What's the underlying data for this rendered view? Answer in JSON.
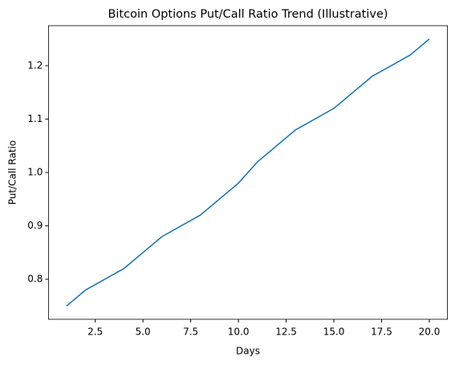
{
  "chart_data": {
    "type": "line",
    "title": "Bitcoin Options Put/Call Ratio Trend (Illustrative)",
    "x_label": "Days",
    "y_label": "Put/Call Ratio",
    "x": [
      1,
      2,
      3,
      4,
      5,
      6,
      7,
      8,
      9,
      10,
      11,
      12,
      13,
      14,
      15,
      16,
      17,
      18,
      19,
      20
    ],
    "series": [
      {
        "name": "Put/Call Ratio",
        "color": "#1f77b4",
        "values": [
          0.75,
          0.78,
          0.8,
          0.82,
          0.85,
          0.88,
          0.9,
          0.92,
          0.95,
          0.98,
          1.02,
          1.05,
          1.08,
          1.1,
          1.12,
          1.15,
          1.18,
          1.2,
          1.22,
          1.25
        ]
      }
    ],
    "xlim": [
      0.05,
      20.95
    ],
    "xticks": [
      2.5,
      {
        "value": 5,
        "label": "5.0"
      },
      7.5,
      {
        "value": 10,
        "label": "10.0"
      },
      12.5,
      {
        "value": 15,
        "label": "15.0"
      },
      17.5,
      {
        "value": 20,
        "label": "20.0"
      }
    ],
    "ylim": [
      0.725,
      1.275
    ],
    "yticks": [
      0.8,
      0.9,
      {
        "value": 1,
        "label": "1.0"
      },
      1.1,
      1.2
    ],
    "grid": false
  }
}
